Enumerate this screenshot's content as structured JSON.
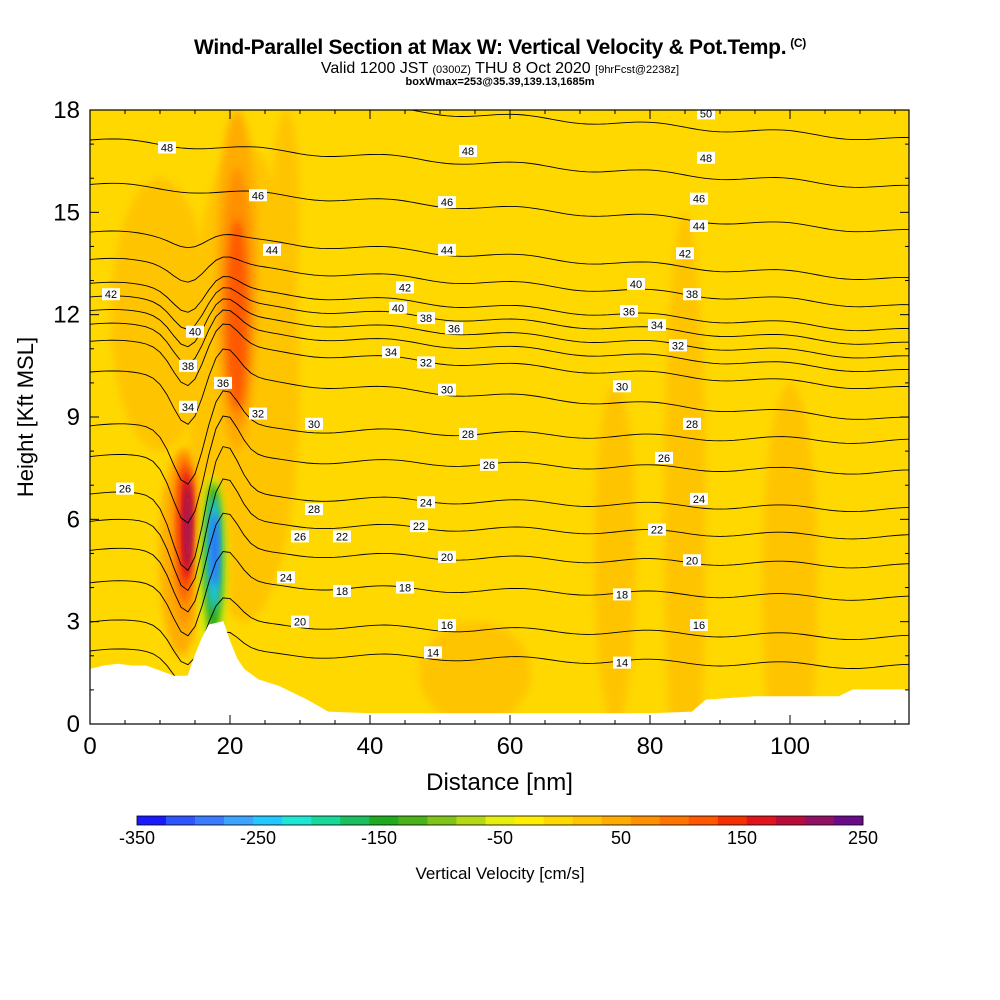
{
  "chart_data": {
    "type": "heatmap",
    "title": "Wind-Parallel Section at Max W: Vertical Velocity & Pot.Temp.",
    "title_mark": "(C)",
    "subtitle_main": "Valid 1200 JST",
    "subtitle_utc": "(0300Z)",
    "subtitle_date": "THU 8 Oct 2020",
    "subtitle_fcst": "[9hrFcst@2238z]",
    "subtitle2": "boxWmax=253@35.39,139.13,1685m",
    "xlabel": "Distance [nm]",
    "ylabel": "Height [Kft MSL]",
    "xlim": [
      0,
      117
    ],
    "ylim": [
      0,
      18
    ],
    "x_ticks": [
      0,
      20,
      40,
      60,
      80,
      100
    ],
    "y_ticks": [
      0,
      3,
      6,
      9,
      12,
      15,
      18
    ],
    "grid": false,
    "colorbar": {
      "label": "Vertical Velocity [cm/s]",
      "tick_labels": [
        "-350",
        "-250",
        "-150",
        "-50",
        "50",
        "150",
        "250"
      ],
      "range": [
        -350,
        250
      ],
      "step": 25,
      "colors": [
        "#1a1aff",
        "#2e55ff",
        "#3a7cff",
        "#3aa4ff",
        "#22c8ff",
        "#1ee6d4",
        "#18d89a",
        "#1ac060",
        "#20aa20",
        "#4cb21c",
        "#80c41a",
        "#b4d814",
        "#e6ee10",
        "#ffee00",
        "#ffd800",
        "#ffc400",
        "#ffac00",
        "#ff9000",
        "#ff7400",
        "#ff5800",
        "#f23000",
        "#e0141c",
        "#b80c3c",
        "#901064",
        "#6a0c8a"
      ]
    },
    "theta_contours": {
      "levels": [
        14,
        16,
        18,
        20,
        22,
        24,
        26,
        28,
        30,
        32,
        34,
        36,
        38,
        40,
        42,
        44,
        46,
        48,
        50
      ],
      "labels": [
        {
          "text": "48",
          "x": 11,
          "y": 16.9
        },
        {
          "text": "46",
          "x": 24,
          "y": 15.5
        },
        {
          "text": "44",
          "x": 26,
          "y": 13.9
        },
        {
          "text": "42",
          "x": 3,
          "y": 12.6
        },
        {
          "text": "40",
          "x": 15,
          "y": 11.5
        },
        {
          "text": "38",
          "x": 14,
          "y": 10.5
        },
        {
          "text": "36",
          "x": 19,
          "y": 10.0
        },
        {
          "text": "34",
          "x": 14,
          "y": 9.3
        },
        {
          "text": "32",
          "x": 24,
          "y": 9.1
        },
        {
          "text": "30",
          "x": 32,
          "y": 8.8
        },
        {
          "text": "26",
          "x": 5,
          "y": 6.9
        },
        {
          "text": "28",
          "x": 32,
          "y": 6.3
        },
        {
          "text": "26",
          "x": 30,
          "y": 5.5
        },
        {
          "text": "24",
          "x": 28,
          "y": 4.3
        },
        {
          "text": "22",
          "x": 36,
          "y": 5.5
        },
        {
          "text": "18",
          "x": 36,
          "y": 3.9
        },
        {
          "text": "20",
          "x": 30,
          "y": 3.0
        },
        {
          "text": "50",
          "x": 88,
          "y": 17.9
        },
        {
          "text": "48",
          "x": 54,
          "y": 16.8
        },
        {
          "text": "48",
          "x": 88,
          "y": 16.6
        },
        {
          "text": "46",
          "x": 51,
          "y": 15.3
        },
        {
          "text": "46",
          "x": 87,
          "y": 15.4
        },
        {
          "text": "44",
          "x": 51,
          "y": 13.9
        },
        {
          "text": "44",
          "x": 87,
          "y": 14.6
        },
        {
          "text": "42",
          "x": 45,
          "y": 12.8
        },
        {
          "text": "42",
          "x": 85,
          "y": 13.8
        },
        {
          "text": "40",
          "x": 44,
          "y": 12.2
        },
        {
          "text": "40",
          "x": 78,
          "y": 12.9
        },
        {
          "text": "38",
          "x": 48,
          "y": 11.9
        },
        {
          "text": "38",
          "x": 86,
          "y": 12.6
        },
        {
          "text": "36",
          "x": 52,
          "y": 11.6
        },
        {
          "text": "36",
          "x": 77,
          "y": 12.1
        },
        {
          "text": "34",
          "x": 43,
          "y": 10.9
        },
        {
          "text": "34",
          "x": 81,
          "y": 11.7
        },
        {
          "text": "32",
          "x": 48,
          "y": 10.6
        },
        {
          "text": "32",
          "x": 84,
          "y": 11.1
        },
        {
          "text": "30",
          "x": 51,
          "y": 9.8
        },
        {
          "text": "30",
          "x": 76,
          "y": 9.9
        },
        {
          "text": "28",
          "x": 54,
          "y": 8.5
        },
        {
          "text": "28",
          "x": 86,
          "y": 8.8
        },
        {
          "text": "26",
          "x": 57,
          "y": 7.6
        },
        {
          "text": "26",
          "x": 82,
          "y": 7.8
        },
        {
          "text": "24",
          "x": 48,
          "y": 6.5
        },
        {
          "text": "24",
          "x": 87,
          "y": 6.6
        },
        {
          "text": "22",
          "x": 47,
          "y": 5.8
        },
        {
          "text": "22",
          "x": 81,
          "y": 5.7
        },
        {
          "text": "20",
          "x": 51,
          "y": 4.9
        },
        {
          "text": "20",
          "x": 86,
          "y": 4.8
        },
        {
          "text": "18",
          "x": 45,
          "y": 4.0
        },
        {
          "text": "18",
          "x": 76,
          "y": 3.8
        },
        {
          "text": "16",
          "x": 51,
          "y": 2.9
        },
        {
          "text": "16",
          "x": 87,
          "y": 2.9
        },
        {
          "text": "14",
          "x": 49,
          "y": 2.1
        },
        {
          "text": "14",
          "x": 76,
          "y": 1.8
        }
      ]
    }
  }
}
